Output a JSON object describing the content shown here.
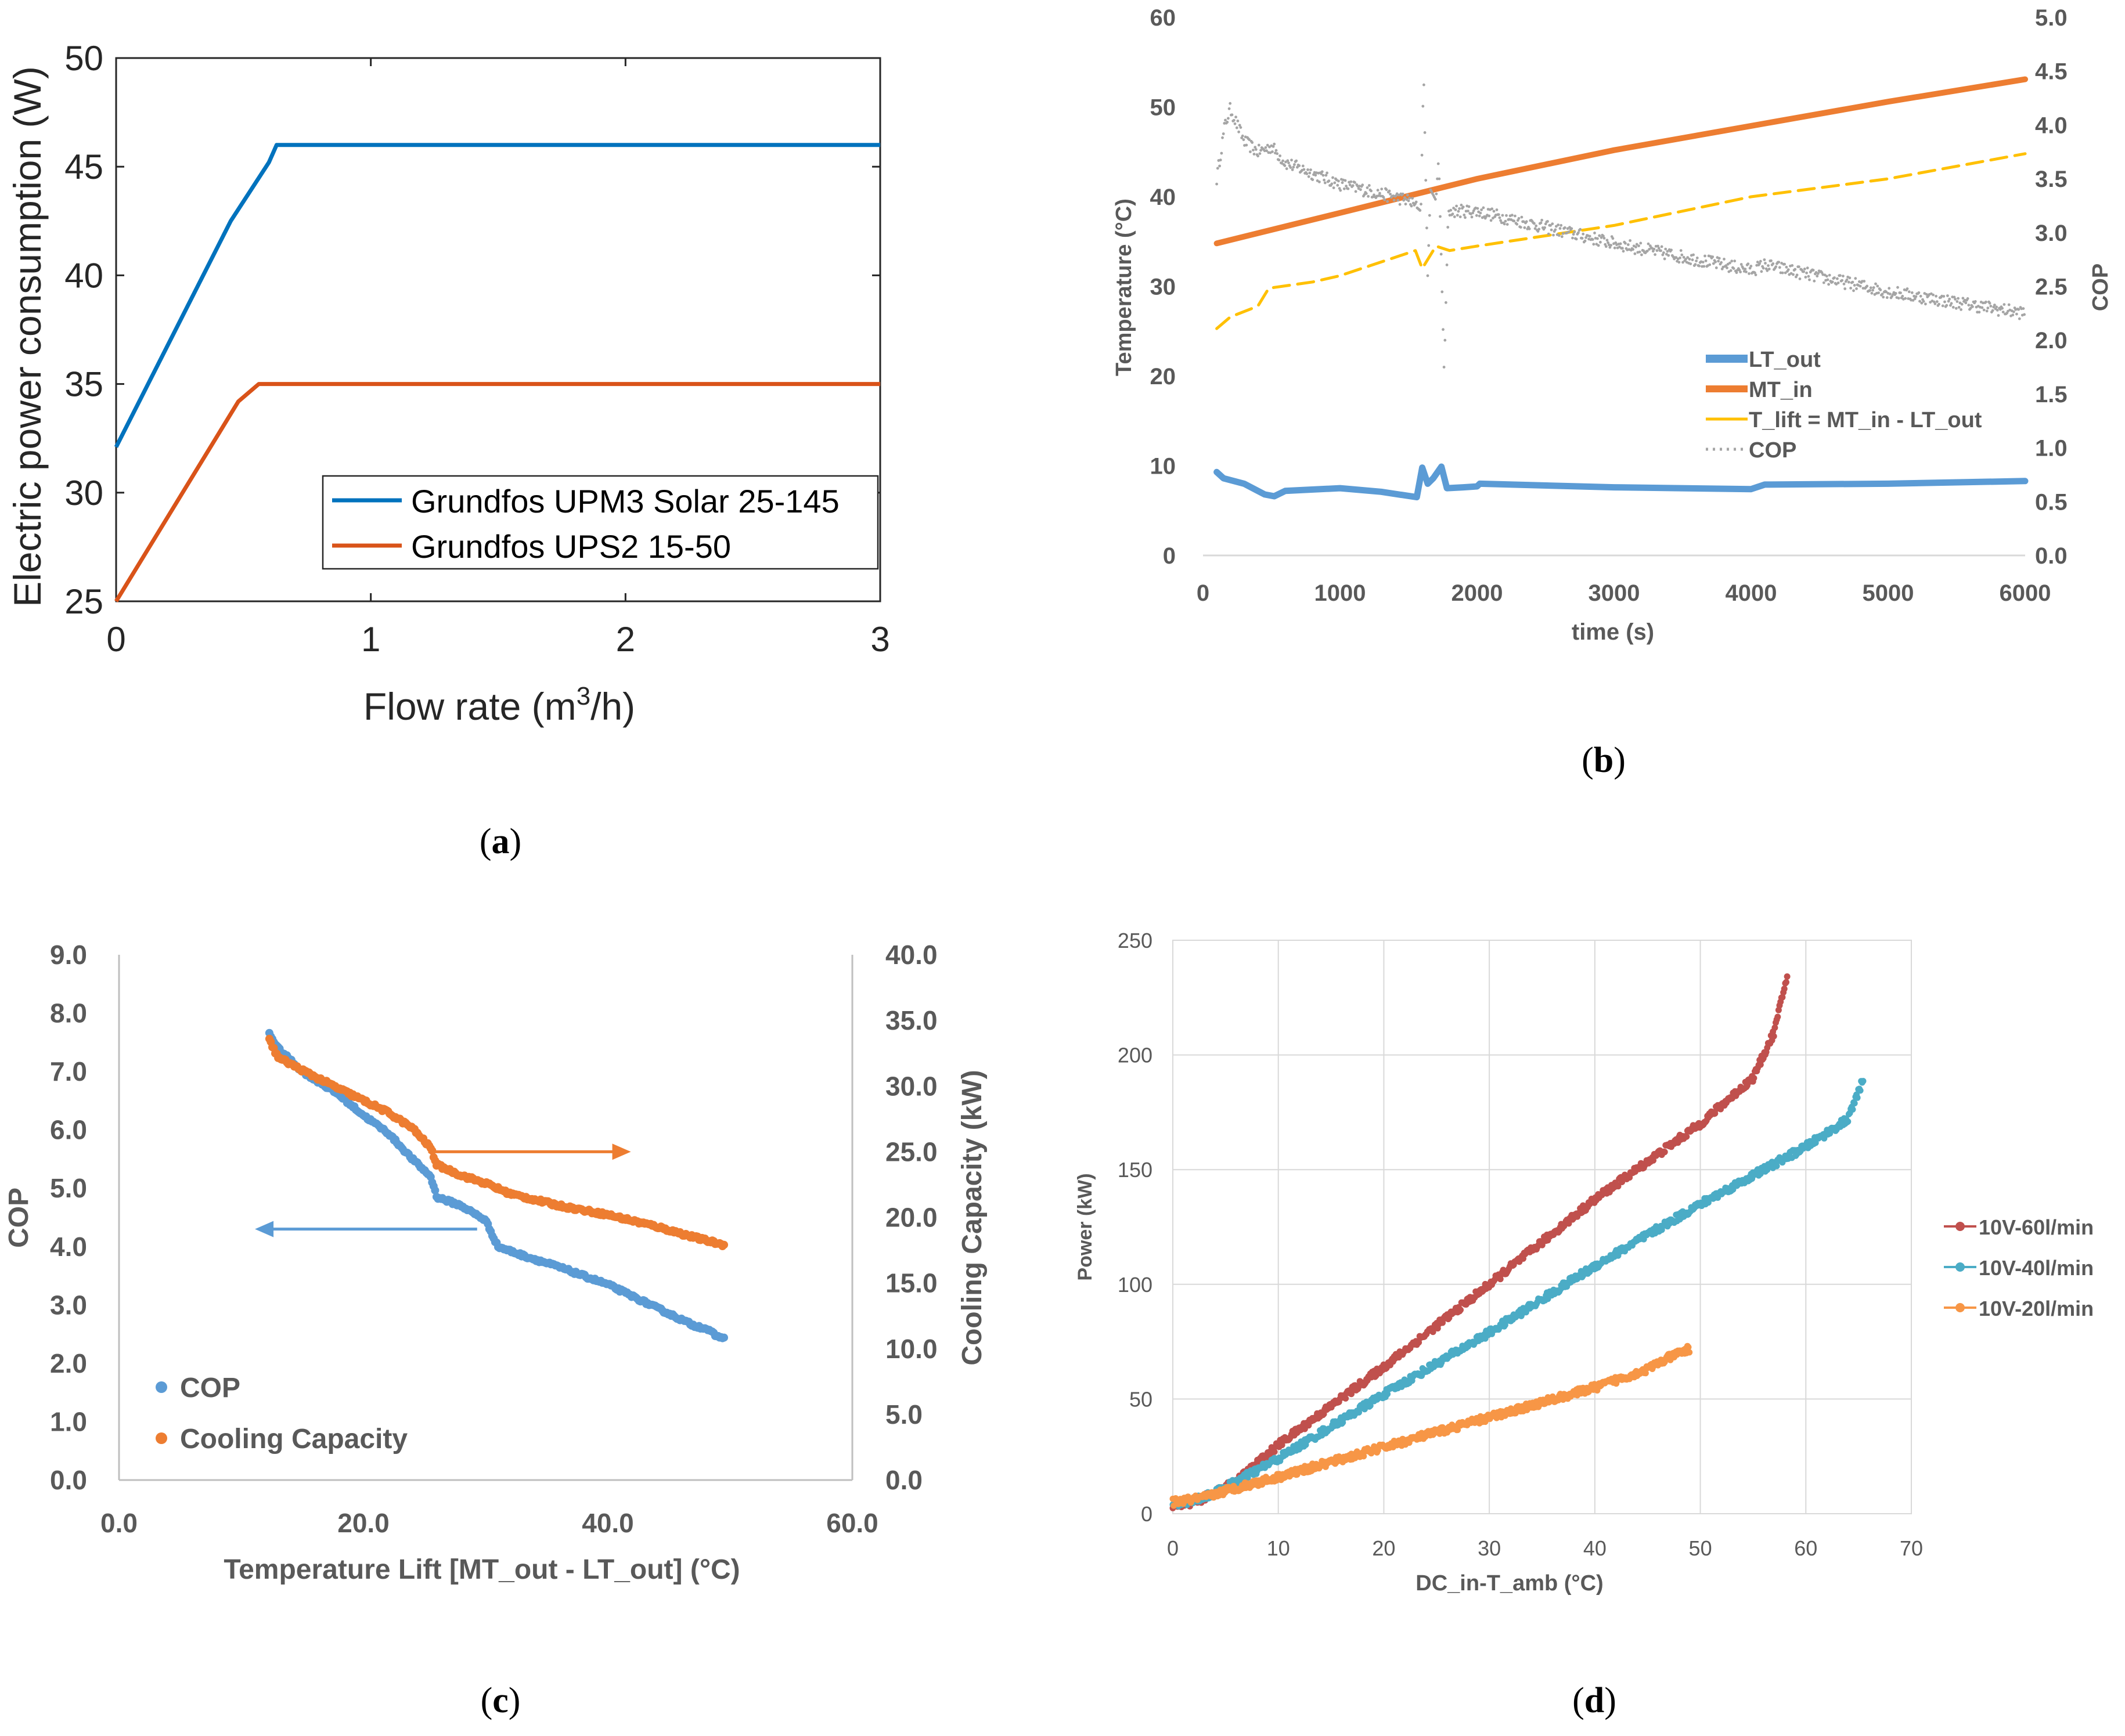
{
  "colors": {
    "blue": "#0072BD",
    "red": "#D95319",
    "b_lt": "#5B9BD5",
    "b_mt": "#ED7D31",
    "b_lift": "#FFC000",
    "b_cop": "#A5A5A5",
    "c_cop": "#5B9BD5",
    "c_cap": "#ED7D31",
    "d_60": "#C0504D",
    "d_40": "#4BACC6",
    "d_20": "#F79646",
    "axis_gray": "#595959"
  },
  "chart_data": [
    {
      "id": "a",
      "type": "line",
      "caption_letter": "a",
      "title": "",
      "xlabel_main": "Flow rate (m",
      "xlabel_sup": "3",
      "xlabel_end": "/h)",
      "ylabel": "Electric power consumption (W)",
      "xlim": [
        0,
        3
      ],
      "ylim": [
        25,
        50
      ],
      "xticks": [
        "0",
        "1",
        "2",
        "3"
      ],
      "yticks": [
        "25",
        "30",
        "35",
        "40",
        "45",
        "50"
      ],
      "legend_position": "bottom-right",
      "series": [
        {
          "name": "Grundfos UPM3 Solar 25-145",
          "color_key": "blue",
          "points": [
            [
              0,
              32.1
            ],
            [
              0.45,
              42.5
            ],
            [
              0.6,
              45.2
            ],
            [
              0.63,
              46
            ],
            [
              3,
              46
            ]
          ]
        },
        {
          "name": "Grundfos UPS2 15-50",
          "color_key": "red",
          "points": [
            [
              0,
              25
            ],
            [
              0.48,
              34.2
            ],
            [
              0.56,
              35
            ],
            [
              3,
              35
            ]
          ]
        }
      ]
    },
    {
      "id": "b",
      "type": "line",
      "caption_letter": "b",
      "xlabel": "time (s)",
      "ylabel_left": "Temperature (°C)",
      "ylabel_right": "COP",
      "xlim": [
        0,
        6000
      ],
      "ylim_left": [
        0,
        60
      ],
      "ylim_right": [
        0,
        5
      ],
      "xticks": [
        "0",
        "1000",
        "2000",
        "3000",
        "4000",
        "5000",
        "6000"
      ],
      "yticks_left": [
        "0",
        "10",
        "20",
        "30",
        "40",
        "50",
        "60"
      ],
      "yticks_right": [
        "0.0",
        "0.5",
        "1.0",
        "1.5",
        "2.0",
        "2.5",
        "3.0",
        "3.5",
        "4.0",
        "4.5",
        "5.0"
      ],
      "legend_position": "middle-right",
      "series": [
        {
          "name": "LT_out",
          "color_key": "b_lt",
          "axis": "left",
          "style": "thick",
          "points": [
            [
              100,
              9.3
            ],
            [
              150,
              8.6
            ],
            [
              300,
              8.0
            ],
            [
              450,
              6.8
            ],
            [
              520,
              6.6
            ],
            [
              600,
              7.2
            ],
            [
              1000,
              7.5
            ],
            [
              1300,
              7.1
            ],
            [
              1560,
              6.5
            ],
            [
              1600,
              9.8
            ],
            [
              1640,
              8.0
            ],
            [
              1680,
              8.6
            ],
            [
              1740,
              9.9
            ],
            [
              1780,
              7.5
            ],
            [
              1900,
              7.6
            ],
            [
              2000,
              7.7
            ],
            [
              2020,
              8.0
            ],
            [
              3000,
              7.6
            ],
            [
              4000,
              7.4
            ],
            [
              4100,
              7.9
            ],
            [
              5000,
              8.0
            ],
            [
              6000,
              8.3
            ]
          ]
        },
        {
          "name": "MT_in",
          "color_key": "b_mt",
          "axis": "left",
          "style": "thick",
          "points": [
            [
              100,
              34.8
            ],
            [
              1000,
              38.2
            ],
            [
              2000,
              42.0
            ],
            [
              3000,
              45.2
            ],
            [
              4000,
              47.9
            ],
            [
              5000,
              50.6
            ],
            [
              6000,
              53.1
            ]
          ]
        },
        {
          "name": "T_lift = MT_in - LT_out",
          "color_key": "b_lift",
          "axis": "left",
          "style": "dashed",
          "points": [
            [
              100,
              25.3
            ],
            [
              200,
              26.6
            ],
            [
              400,
              27.8
            ],
            [
              480,
              29.8
            ],
            [
              800,
              30.5
            ],
            [
              1000,
              31.2
            ],
            [
              1550,
              34.0
            ],
            [
              1600,
              32.0
            ],
            [
              1700,
              34.5
            ],
            [
              1800,
              34.0
            ],
            [
              2000,
              34.5
            ],
            [
              3000,
              36.8
            ],
            [
              4000,
              40.0
            ],
            [
              5000,
              42.0
            ],
            [
              6000,
              44.8
            ]
          ]
        },
        {
          "name": "COP",
          "color_key": "b_cop",
          "axis": "right",
          "style": "dotted",
          "points": [
            [
              100,
              3.5
            ],
            [
              160,
              4.0
            ],
            [
              200,
              4.15
            ],
            [
              300,
              3.85
            ],
            [
              400,
              3.75
            ],
            [
              500,
              3.8
            ],
            [
              600,
              3.65
            ],
            [
              1000,
              3.45
            ],
            [
              1500,
              3.3
            ],
            [
              1590,
              3.2
            ],
            [
              1610,
              4.5
            ],
            [
              1640,
              2.6
            ],
            [
              1660,
              3.4
            ],
            [
              1700,
              3.3
            ],
            [
              1720,
              3.7
            ],
            [
              1760,
              1.7
            ],
            [
              1790,
              3.2
            ],
            [
              2000,
              3.2
            ],
            [
              3000,
              2.9
            ],
            [
              4000,
              2.65
            ],
            [
              4100,
              2.7
            ],
            [
              5000,
              2.45
            ],
            [
              6000,
              2.25
            ]
          ]
        }
      ]
    },
    {
      "id": "c",
      "type": "line",
      "caption_letter": "c",
      "xlabel": "Temperature Lift [MT_out - LT_out]  (°C)",
      "ylabel_left": "COP",
      "ylabel_right": "Cooling Capacity (kW)",
      "xlim": [
        0,
        60
      ],
      "ylim_left": [
        0,
        9
      ],
      "ylim_right": [
        0,
        40
      ],
      "xticks": [
        "0.0",
        "20.0",
        "40.0",
        "60.0"
      ],
      "yticks_left": [
        "0.0",
        "1.0",
        "2.0",
        "3.0",
        "4.0",
        "5.0",
        "6.0",
        "7.0",
        "8.0",
        "9.0"
      ],
      "yticks_right": [
        "0.0",
        "5.0",
        "10.0",
        "15.0",
        "20.0",
        "25.0",
        "30.0",
        "35.0",
        "40.0"
      ],
      "legend_position": "bottom-left",
      "series": [
        {
          "name": "COP",
          "color_key": "c_cop",
          "axis": "left",
          "points": [
            [
              12.3,
              7.65
            ],
            [
              13,
              7.4
            ],
            [
              15,
              7.0
            ],
            [
              18,
              6.6
            ],
            [
              20,
              6.25
            ],
            [
              22,
              5.95
            ],
            [
              24,
              5.5
            ],
            [
              25.5,
              5.2
            ],
            [
              26,
              4.85
            ],
            [
              28,
              4.7
            ],
            [
              30,
              4.45
            ],
            [
              31,
              4.0
            ],
            [
              33,
              3.85
            ],
            [
              36,
              3.65
            ],
            [
              40,
              3.35
            ],
            [
              44,
              2.95
            ],
            [
              47,
              2.65
            ],
            [
              48,
              2.6
            ],
            [
              49,
              2.45
            ],
            [
              49.6,
              2.45
            ]
          ]
        },
        {
          "name": "Cooling Capacity",
          "color_key": "c_cap",
          "axis": "right",
          "points": [
            [
              12.3,
              33.5
            ],
            [
              13,
              32.2
            ],
            [
              15,
              31.2
            ],
            [
              18,
              29.8
            ],
            [
              20,
              28.9
            ],
            [
              22,
              28.0
            ],
            [
              24,
              26.8
            ],
            [
              25.5,
              25.3
            ],
            [
              26,
              24.0
            ],
            [
              28,
              23.2
            ],
            [
              30,
              22.6
            ],
            [
              32,
              21.8
            ],
            [
              36,
              20.9
            ],
            [
              40,
              20.2
            ],
            [
              44,
              19.3
            ],
            [
              47,
              18.5
            ],
            [
              49.5,
              17.9
            ]
          ]
        }
      ],
      "annotations": [
        {
          "kind": "arrow",
          "color_key": "c_cap",
          "from": [
            25.3,
            25.0
          ],
          "to": [
            41.5,
            25.0
          ],
          "axis": "right"
        },
        {
          "kind": "arrow",
          "color_key": "c_cop",
          "from": [
            29.3,
            4.3
          ],
          "to": [
            11.5,
            4.3
          ],
          "axis": "left"
        }
      ]
    },
    {
      "id": "d",
      "type": "scatter",
      "caption_letter": "d",
      "xlabel": "DC_in-T_amb (°C)",
      "ylabel": "Power (kW)",
      "xlim": [
        0,
        70
      ],
      "ylim": [
        0,
        250
      ],
      "xticks": [
        "0",
        "10",
        "20",
        "30",
        "40",
        "50",
        "60",
        "70"
      ],
      "yticks": [
        "0",
        "50",
        "100",
        "150",
        "200",
        "250"
      ],
      "legend_position": "right",
      "series": [
        {
          "name": "10V-60l/min",
          "color_key": "d_60",
          "points": [
            [
              0,
              4
            ],
            [
              2,
              5
            ],
            [
              4,
              9
            ],
            [
              6,
              14
            ],
            [
              10,
              30
            ],
            [
              20,
              64
            ],
            [
              30,
              100
            ],
            [
              40,
              137
            ],
            [
              50,
              170
            ],
            [
              55,
              190
            ],
            [
              57,
              210
            ],
            [
              58,
              230
            ],
            [
              58.3,
              236
            ]
          ]
        },
        {
          "name": "10V-40l/min",
          "color_key": "d_40",
          "points": [
            [
              0,
              4
            ],
            [
              2,
              6
            ],
            [
              4,
              9
            ],
            [
              10,
              24
            ],
            [
              20,
              52
            ],
            [
              30,
              79
            ],
            [
              40,
              108
            ],
            [
              50,
              135
            ],
            [
              60,
              160
            ],
            [
              64,
              172
            ],
            [
              65.5,
              190
            ]
          ]
        },
        {
          "name": "10V-20l/min",
          "color_key": "d_20",
          "points": [
            [
              0,
              5
            ],
            [
              3,
              7
            ],
            [
              5,
              10
            ],
            [
              10,
              16
            ],
            [
              20,
              29
            ],
            [
              30,
              42
            ],
            [
              40,
              55
            ],
            [
              45,
              63
            ],
            [
              47,
              68
            ],
            [
              49,
              72
            ]
          ]
        }
      ]
    }
  ]
}
